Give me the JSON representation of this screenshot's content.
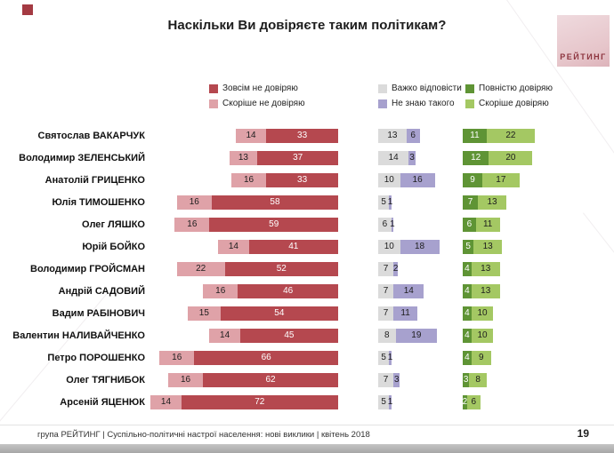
{
  "slide": {
    "title": "Наскільки Ви довіряєте таким політикам?",
    "logo_text": "РЕЙТИНГ",
    "footer": "група РЕЙТИНГ  |  Суспільно-політичні настрої населення: нові виклики  |  квітень 2018",
    "page_number": "19"
  },
  "legend": [
    {
      "label": "Зовсім не довіряю",
      "color": "#b5484f"
    },
    {
      "label": "Скоріше не довіряю",
      "color": "#dfa2a8"
    },
    {
      "label": "Важко відповісти",
      "color": "#dbdbdb"
    },
    {
      "label": "Не знаю такого",
      "color": "#a7a1ce"
    },
    {
      "label": "Повністю довіряю",
      "color": "#5f9435"
    },
    {
      "label": "Скоріше довіряю",
      "color": "#a4c863"
    }
  ],
  "chart_data": {
    "type": "bar",
    "orientation": "horizontal",
    "unit": "%",
    "title": "Наскільки Ви довіряєте таким політикам?",
    "legend_position": "top",
    "grid": false,
    "axis_range": [
      0,
      100
    ],
    "categories": [
      "Святослав ВАКАРЧУК",
      "Володимир ЗЕЛЕНСЬКИЙ",
      "Анатолій ГРИЦЕНКО",
      "Юлія ТИМОШЕНКО",
      "Олег ЛЯШКО",
      "Юрій БОЙКО",
      "Володимир ГРОЙСМАН",
      "Андрій САДОВИЙ",
      "Вадим РАБІНОВИЧ",
      "Валентин НАЛИВАЙЧЕНКО",
      "Петро ПОРОШЕНКО",
      "Олег ТЯГНИБОК",
      "Арсеній ЯЦЕНЮК"
    ],
    "series": [
      {
        "name": "Скоріше не довіряю",
        "group": "negative",
        "color": "#dfa2a8",
        "text_color": "#1d1d1d",
        "values": [
          14,
          13,
          16,
          16,
          16,
          14,
          22,
          16,
          15,
          14,
          16,
          16,
          14
        ]
      },
      {
        "name": "Зовсім не довіряю",
        "group": "negative",
        "color": "#b5484f",
        "text_color": "#ffffff",
        "values": [
          33,
          37,
          33,
          58,
          59,
          41,
          52,
          46,
          54,
          45,
          66,
          62,
          72
        ]
      },
      {
        "name": "Важко відповісти",
        "group": "neutral",
        "color": "#dbdbdb",
        "text_color": "#1d1d1d",
        "values": [
          13,
          14,
          10,
          5,
          6,
          10,
          7,
          7,
          7,
          8,
          5,
          7,
          5
        ]
      },
      {
        "name": "Не знаю такого",
        "group": "neutral",
        "color": "#a7a1ce",
        "text_color": "#1d1d1d",
        "values": [
          6,
          3,
          16,
          1,
          1,
          18,
          2,
          14,
          11,
          19,
          1,
          3,
          1
        ]
      },
      {
        "name": "Повністю довіряю",
        "group": "positive",
        "color": "#5f9435",
        "text_color": "#ffffff",
        "values": [
          11,
          12,
          9,
          7,
          6,
          5,
          4,
          4,
          4,
          4,
          4,
          3,
          2
        ]
      },
      {
        "name": "Скоріше довіряю",
        "group": "positive",
        "color": "#a4c863",
        "text_color": "#1d1d1d",
        "values": [
          22,
          20,
          17,
          13,
          11,
          13,
          13,
          13,
          10,
          10,
          9,
          8,
          6
        ]
      }
    ]
  }
}
